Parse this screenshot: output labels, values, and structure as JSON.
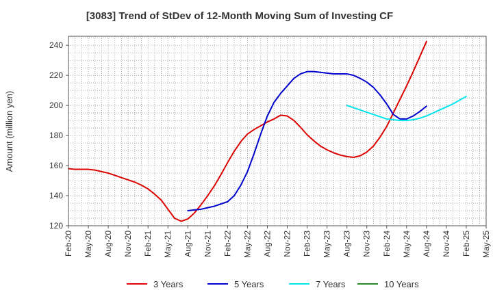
{
  "chart_data": {
    "type": "line",
    "title": "[3083]  Trend of StDev of 12-Month Moving Sum of Investing CF",
    "xlabel": "",
    "ylabel": "Amount (million yen)",
    "ylim": [
      120,
      246
    ],
    "yticks": [
      120,
      140,
      160,
      180,
      200,
      220,
      240
    ],
    "grid": true,
    "legend_position": "bottom",
    "xtick_labels": [
      "Feb-20",
      "May-20",
      "Aug-20",
      "Nov-20",
      "Feb-21",
      "May-21",
      "Aug-21",
      "Nov-21",
      "Feb-22",
      "May-22",
      "Aug-22",
      "Nov-22",
      "Feb-23",
      "May-23",
      "Aug-23",
      "Nov-23",
      "Feb-24",
      "May-24",
      "Aug-24",
      "Nov-24",
      "Feb-25",
      "May-25"
    ],
    "series": [
      {
        "name": "3 Years",
        "color": "#dd0000",
        "start_index": 0,
        "values": [
          158,
          157.5,
          157.5,
          157.5,
          157,
          156,
          155,
          153.5,
          152,
          150.5,
          149,
          147,
          144.5,
          141,
          137,
          131,
          125,
          123,
          124.5,
          128.5,
          134,
          140,
          146.5,
          154,
          162,
          169.5,
          176,
          181,
          184,
          186.5,
          189,
          191,
          193.5,
          193,
          190,
          185.5,
          180.5,
          176.5,
          173,
          170.5,
          168.5,
          167,
          166,
          165.5,
          166.5,
          169,
          173,
          179,
          186,
          195,
          204,
          213,
          222.5,
          232.5,
          242.5
        ]
      },
      {
        "name": "5 Years",
        "color": "#0000cc",
        "start_index": 18,
        "values": [
          130,
          130.5,
          131,
          132,
          133,
          134.5,
          136,
          140,
          147,
          156,
          168,
          181,
          193,
          202,
          208,
          213,
          218,
          221,
          222.5,
          222.5,
          222,
          221.5,
          221,
          221,
          221,
          220,
          218,
          215.5,
          212,
          207,
          201,
          194,
          191,
          191,
          193,
          196,
          199.5
        ]
      },
      {
        "name": "7 Years",
        "color": "#00e5ee",
        "start_index": 42,
        "values": [
          200,
          198.5,
          197,
          195.5,
          194,
          192.5,
          191,
          190.5,
          190,
          190,
          190.5,
          191.5,
          193,
          195,
          197,
          199,
          201,
          203.5,
          206
        ]
      },
      {
        "name": "10 Years",
        "color": "#228b22",
        "start_index": 0,
        "values": []
      }
    ]
  }
}
